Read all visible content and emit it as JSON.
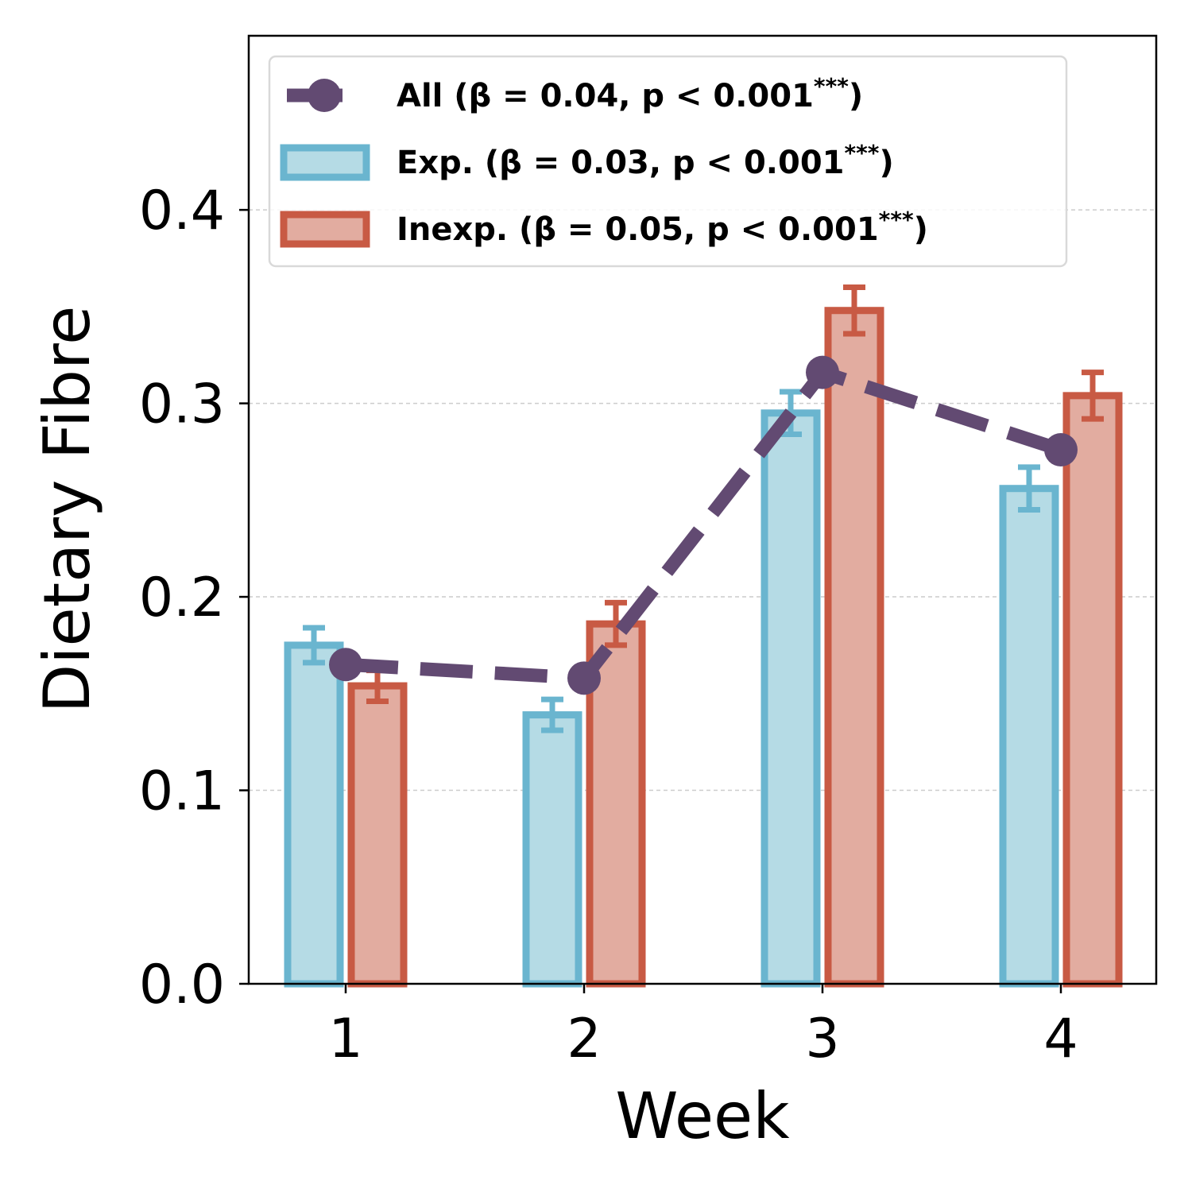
{
  "chart_data": {
    "type": "bar",
    "title": "",
    "xlabel": "Week",
    "ylabel": "Dietary Fibre",
    "categories": [
      "1",
      "2",
      "3",
      "4"
    ],
    "ylim": [
      0,
      0.49
    ],
    "yticks": [
      "0.0",
      "0.1",
      "0.2",
      "0.3",
      "0.4"
    ],
    "grid": "horizontal dashed",
    "legend_position": "top-left",
    "series": [
      {
        "name": "Exp.",
        "legend": "Exp. (β = 0.03, p < 0.001***)",
        "kind": "bar",
        "values": [
          0.175,
          0.139,
          0.295,
          0.256
        ],
        "errors": [
          0.009,
          0.008,
          0.011,
          0.011
        ],
        "fill": "#b5dbe5",
        "edge": "#6ab5cf"
      },
      {
        "name": "Inexp.",
        "legend": "Inexp. (β = 0.05, p < 0.001***)",
        "kind": "bar",
        "values": [
          0.154,
          0.186,
          0.348,
          0.304
        ],
        "errors": [
          0.008,
          0.011,
          0.012,
          0.012
        ],
        "fill": "#e2aca0",
        "edge": "#c85a44"
      },
      {
        "name": "All",
        "legend": "All (β = 0.04, p < 0.001***)",
        "kind": "line",
        "values": [
          0.165,
          0.158,
          0.316,
          0.276
        ],
        "color": "#624a72",
        "style": "dashed with circle markers"
      }
    ],
    "legend_labels": {
      "all": {
        "main": "All (β = 0.04, p < 0.001",
        "sup": "***",
        "close": ")"
      },
      "exp": {
        "main": "Exp. (β = 0.03, p < 0.001",
        "sup": "***",
        "close": ")"
      },
      "inexp": {
        "main": "Inexp. (β = 0.05, p < 0.001",
        "sup": "***",
        "close": ")"
      }
    }
  }
}
